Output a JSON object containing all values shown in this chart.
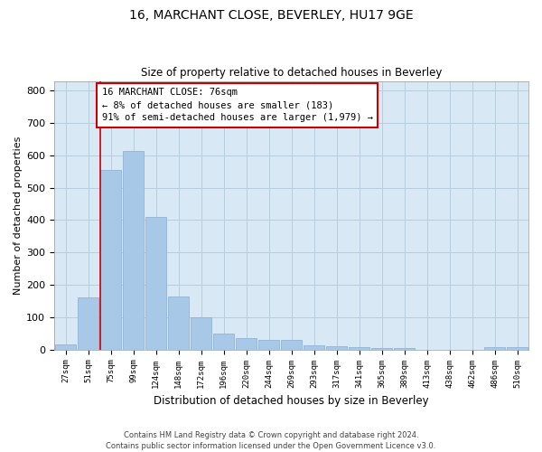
{
  "title1": "16, MARCHANT CLOSE, BEVERLEY, HU17 9GE",
  "title2": "Size of property relative to detached houses in Beverley",
  "xlabel": "Distribution of detached houses by size in Beverley",
  "ylabel": "Number of detached properties",
  "categories": [
    "27sqm",
    "51sqm",
    "75sqm",
    "99sqm",
    "124sqm",
    "148sqm",
    "172sqm",
    "196sqm",
    "220sqm",
    "244sqm",
    "269sqm",
    "293sqm",
    "317sqm",
    "341sqm",
    "365sqm",
    "389sqm",
    "413sqm",
    "438sqm",
    "462sqm",
    "486sqm",
    "510sqm"
  ],
  "values": [
    15,
    160,
    555,
    615,
    410,
    165,
    100,
    50,
    35,
    30,
    30,
    13,
    10,
    8,
    5,
    5,
    0,
    0,
    0,
    8,
    8
  ],
  "bar_color": "#a8c8e8",
  "bar_edge_color": "#88aed0",
  "highlight_line_color": "#cc0000",
  "annotation_text": "16 MARCHANT CLOSE: 76sqm\n← 8% of detached houses are smaller (183)\n91% of semi-detached houses are larger (1,979) →",
  "annotation_box_color": "#ffffff",
  "annotation_box_edge": "#cc0000",
  "ylim": [
    0,
    830
  ],
  "yticks": [
    0,
    100,
    200,
    300,
    400,
    500,
    600,
    700,
    800
  ],
  "grid_color": "#b8cedd",
  "background_color": "#d8e8f4",
  "footer_line1": "Contains HM Land Registry data © Crown copyright and database right 2024.",
  "footer_line2": "Contains public sector information licensed under the Open Government Licence v3.0."
}
